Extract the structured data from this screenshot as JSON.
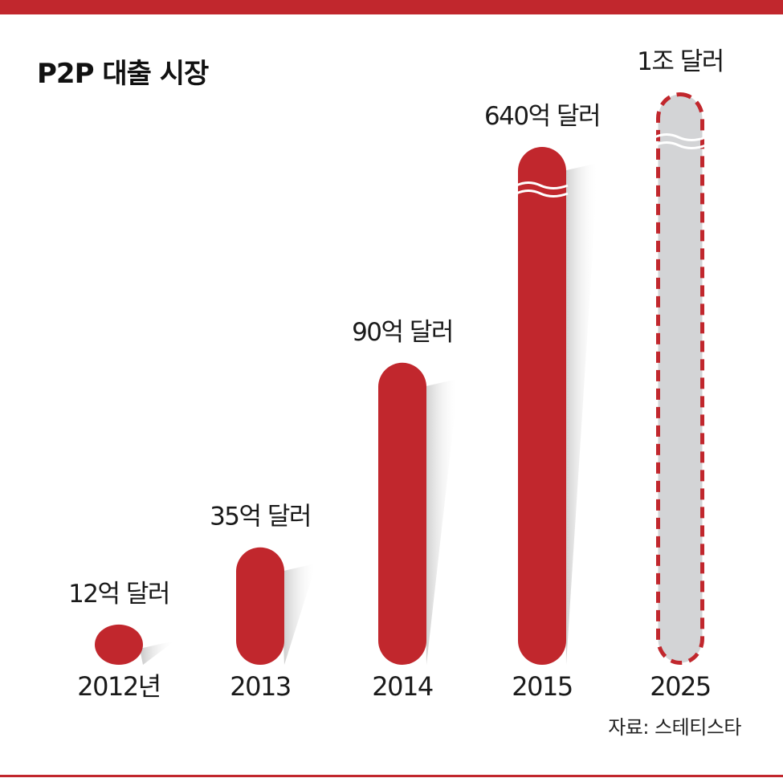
{
  "title": "P2P 대출 시장",
  "source": "자료: 스테티스타",
  "colors": {
    "bar": "#c1272d",
    "forecast_fill": "#d3d4d6",
    "rule": "#c1272d"
  },
  "chart_data": {
    "type": "bar",
    "title": "P2P 대출 시장",
    "categories": [
      "2012년",
      "2013",
      "2014",
      "2015",
      "2025"
    ],
    "values": [
      12,
      35,
      90,
      640,
      10000
    ],
    "value_labels": [
      "12억 달러",
      "35억 달러",
      "90억 달러",
      "640억 달러",
      "1조 달러"
    ],
    "unit": "억 달러",
    "broken_axis": [
      false,
      false,
      false,
      true,
      true
    ],
    "forecast": [
      false,
      false,
      false,
      false,
      true
    ],
    "xlabel": "",
    "ylabel": "",
    "grid": false,
    "legend": "none"
  }
}
